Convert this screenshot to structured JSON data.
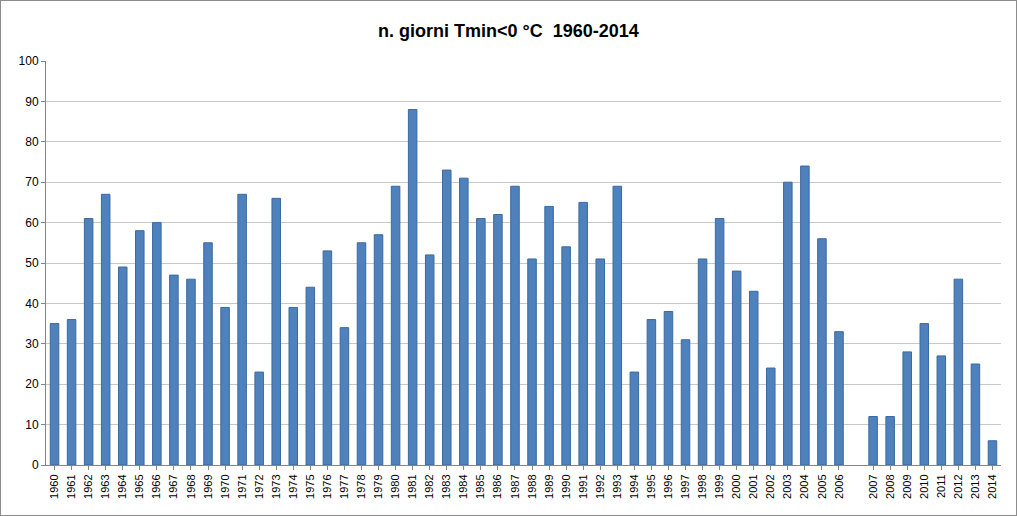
{
  "chart_data": {
    "type": "bar",
    "title": "n. giorni Tmin<0 °C  1960-2014",
    "categories": [
      "1960",
      "1961",
      "1962",
      "1963",
      "1964",
      "1965",
      "1966",
      "1967",
      "1968",
      "1969",
      "1970",
      "1971",
      "1972",
      "1973",
      "1974",
      "1975",
      "1976",
      "1977",
      "1978",
      "1979",
      "1980",
      "1981",
      "1982",
      "1983",
      "1984",
      "1985",
      "1986",
      "1987",
      "1988",
      "1989",
      "1990",
      "1991",
      "1992",
      "1993",
      "1994",
      "1995",
      "1996",
      "1997",
      "1998",
      "1999",
      "2000",
      "2001",
      "2002",
      "2003",
      "2004",
      "2005",
      "2006",
      null,
      "2007",
      "2008",
      "2009",
      "2010",
      "2011",
      "2012",
      "2013",
      "2014"
    ],
    "values": [
      35,
      36,
      61,
      67,
      49,
      58,
      60,
      47,
      46,
      55,
      39,
      67,
      23,
      66,
      39,
      44,
      53,
      34,
      55,
      57,
      69,
      88,
      52,
      73,
      71,
      61,
      62,
      69,
      51,
      64,
      54,
      65,
      51,
      69,
      23,
      36,
      38,
      31,
      51,
      61,
      48,
      43,
      24,
      70,
      74,
      56,
      33,
      null,
      12,
      12,
      28,
      35,
      27,
      46,
      25,
      6
    ],
    "color": "#4f81bd",
    "ylim": [
      0,
      100
    ],
    "yticks": [
      0,
      10,
      20,
      30,
      40,
      50,
      60,
      70,
      80,
      90,
      100
    ],
    "grid": true
  }
}
